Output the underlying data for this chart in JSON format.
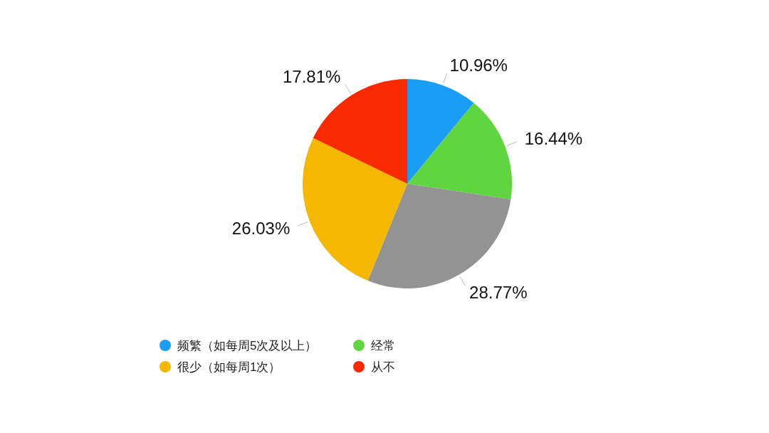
{
  "chart_data": {
    "type": "pie",
    "categories": [
      "频繁（如每周5次及以上）",
      "经常",
      null,
      "很少（如每周1次）",
      "从不"
    ],
    "values": [
      10.96,
      16.44,
      28.77,
      26.03,
      17.81
    ],
    "colors": [
      "#1a9df5",
      "#5fd63f",
      "#939393",
      "#f5b800",
      "#fa2a00"
    ],
    "value_labels": [
      "10.96%",
      "16.44%",
      "28.77%",
      "26.03%",
      "17.81%"
    ],
    "legend": "bottom"
  }
}
